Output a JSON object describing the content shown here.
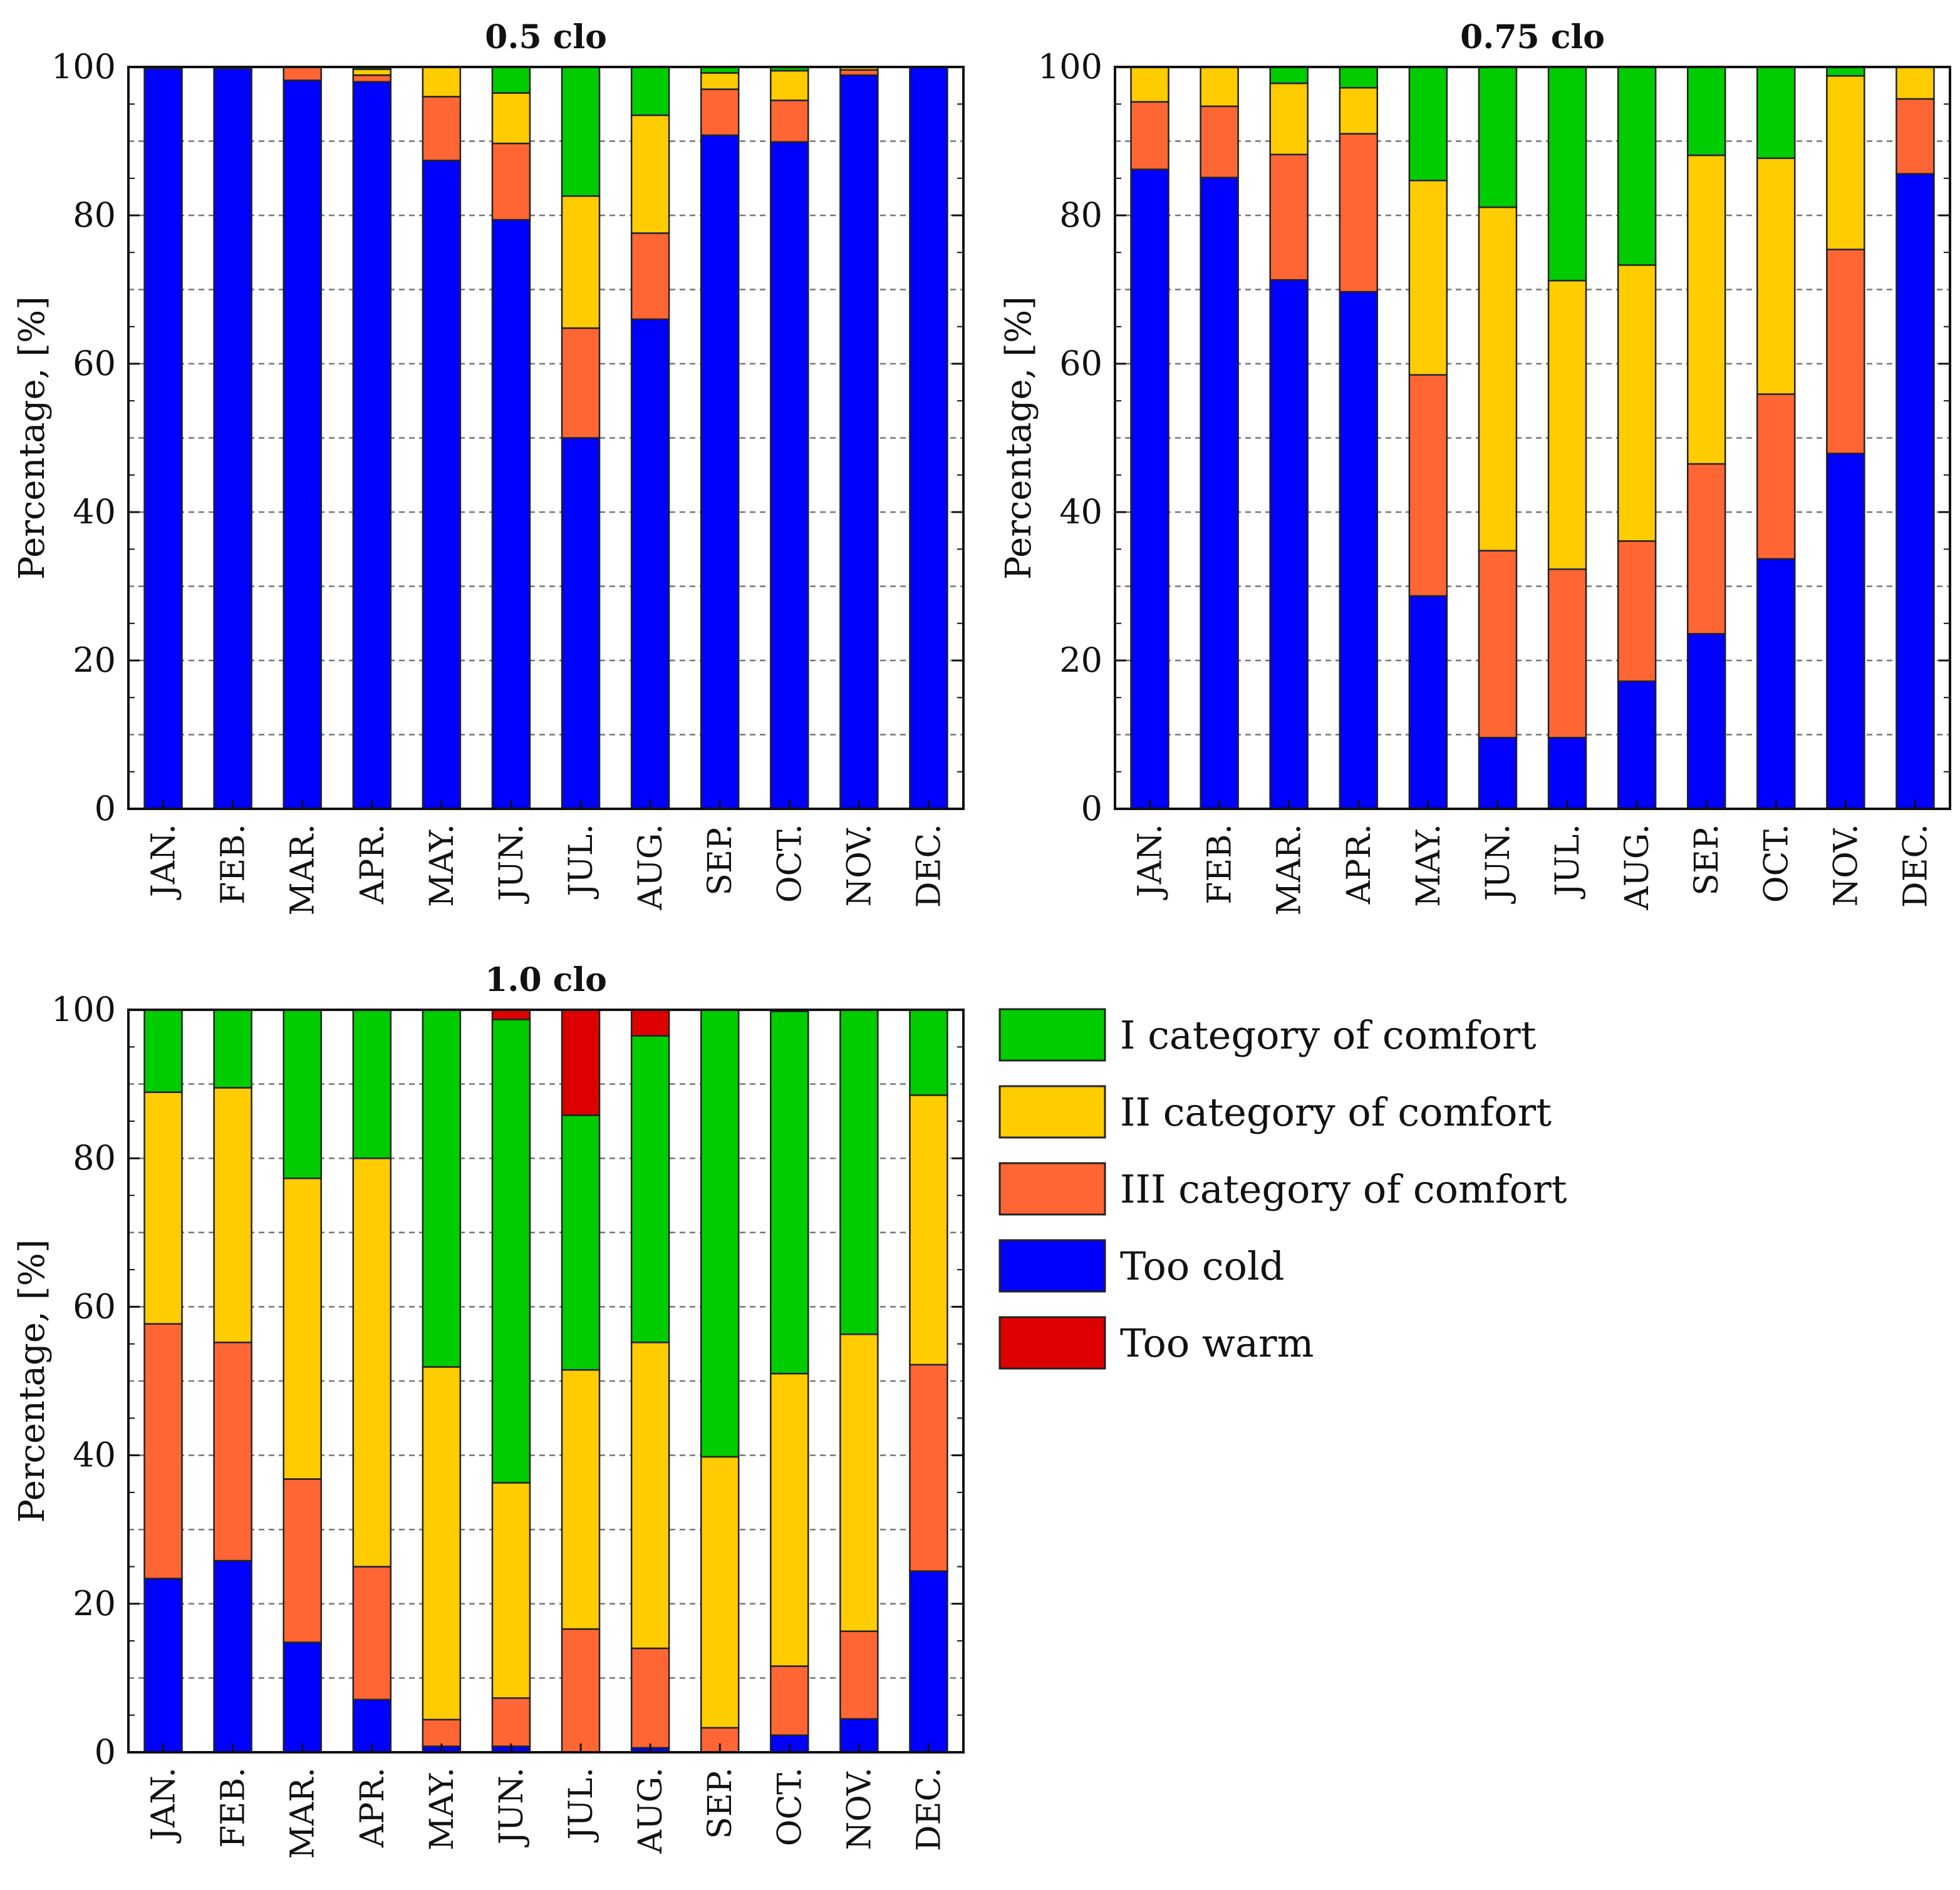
{
  "colors": {
    "too_cold": "#0000ff",
    "iii_category": "#ff6633",
    "ii_category": "#ffcc00",
    "i_category": "#00cc00",
    "too_warm": "#dd0000",
    "grid": "#777777",
    "axis": "#111111"
  },
  "legend": {
    "items": [
      {
        "key": "i_category",
        "label": "I category of comfort"
      },
      {
        "key": "ii_category",
        "label": "II category of comfort"
      },
      {
        "key": "iii_category",
        "label": "III category of comfort"
      },
      {
        "key": "too_cold",
        "label": "Too cold"
      },
      {
        "key": "too_warm",
        "label": "Too warm"
      }
    ]
  },
  "chart_data": [
    {
      "type": "bar",
      "stacked": true,
      "title": "0.5 clo",
      "xlabel": "",
      "ylabel": "Percentage, [%]",
      "ylim": [
        0,
        100
      ],
      "yticks": [
        0,
        20,
        40,
        60,
        80,
        100
      ],
      "grid": "y-dashed",
      "categories": [
        "JAN.",
        "FEB.",
        "MAR.",
        "APR.",
        "MAY.",
        "JUN.",
        "JUL.",
        "AUG.",
        "SEP.",
        "OCT.",
        "NOV.",
        "DEC."
      ],
      "series": [
        {
          "key": "too_cold",
          "name": "Too cold",
          "values": [
            99.8,
            99.8,
            98.2,
            98.0,
            87.4,
            79.4,
            50.0,
            66.0,
            90.8,
            89.9,
            98.9,
            100.0
          ]
        },
        {
          "key": "iii_category",
          "name": "III category of comfort",
          "values": [
            0.2,
            0.2,
            1.8,
            0.9,
            8.6,
            10.3,
            14.8,
            11.6,
            6.2,
            5.6,
            0.7,
            0.0
          ]
        },
        {
          "key": "ii_category",
          "name": "II category of comfort",
          "values": [
            0.0,
            0.0,
            0.0,
            0.8,
            4.0,
            6.8,
            17.8,
            15.9,
            2.2,
            4.0,
            0.4,
            0.0
          ]
        },
        {
          "key": "i_category",
          "name": "I category of comfort",
          "values": [
            0.0,
            0.0,
            0.0,
            0.3,
            0.0,
            3.5,
            17.4,
            6.5,
            0.8,
            0.5,
            0.0,
            0.0
          ]
        },
        {
          "key": "too_warm",
          "name": "Too warm",
          "values": [
            0,
            0,
            0,
            0,
            0,
            0,
            0,
            0,
            0,
            0,
            0,
            0
          ]
        }
      ]
    },
    {
      "type": "bar",
      "stacked": true,
      "title": "0.75 clo",
      "xlabel": "",
      "ylabel": "Percentage, [%]",
      "ylim": [
        0,
        100
      ],
      "yticks": [
        0,
        20,
        40,
        60,
        80,
        100
      ],
      "grid": "y-dashed",
      "categories": [
        "JAN.",
        "FEB.",
        "MAR.",
        "APR.",
        "MAY.",
        "JUN.",
        "JUL.",
        "AUG.",
        "SEP.",
        "OCT.",
        "NOV.",
        "DEC."
      ],
      "series": [
        {
          "key": "too_cold",
          "name": "Too cold",
          "values": [
            86.2,
            85.1,
            71.3,
            69.7,
            28.7,
            9.6,
            9.6,
            17.2,
            23.6,
            33.7,
            47.9,
            85.6
          ]
        },
        {
          "key": "iii_category",
          "name": "III category of comfort",
          "values": [
            9.1,
            9.6,
            16.9,
            21.3,
            29.8,
            25.2,
            22.7,
            18.9,
            22.9,
            22.2,
            27.5,
            10.1
          ]
        },
        {
          "key": "ii_category",
          "name": "II category of comfort",
          "values": [
            4.7,
            5.3,
            9.6,
            6.2,
            26.2,
            46.3,
            38.9,
            37.2,
            41.6,
            31.8,
            23.4,
            4.3
          ]
        },
        {
          "key": "i_category",
          "name": "I category of comfort",
          "values": [
            0.0,
            0.0,
            2.2,
            2.8,
            15.3,
            18.9,
            28.8,
            26.7,
            11.9,
            12.3,
            1.2,
            0.0
          ]
        },
        {
          "key": "too_warm",
          "name": "Too warm",
          "values": [
            0,
            0,
            0,
            0,
            0,
            0,
            0,
            0,
            0,
            0,
            0,
            0
          ]
        }
      ]
    },
    {
      "type": "bar",
      "stacked": true,
      "title": "1.0 clo",
      "xlabel": "",
      "ylabel": "Percentage, [%]",
      "ylim": [
        0,
        100
      ],
      "yticks": [
        0,
        20,
        40,
        60,
        80,
        100
      ],
      "grid": "y-dashed",
      "categories": [
        "JAN.",
        "FEB.",
        "MAR.",
        "APR.",
        "MAY.",
        "JUN.",
        "JUL.",
        "AUG.",
        "SEP.",
        "OCT.",
        "NOV.",
        "DEC."
      ],
      "series": [
        {
          "key": "too_cold",
          "name": "Too cold",
          "values": [
            23.4,
            25.8,
            14.8,
            7.1,
            0.8,
            0.8,
            0.0,
            0.6,
            0.0,
            2.3,
            4.5,
            24.4
          ]
        },
        {
          "key": "iii_category",
          "name": "III category of comfort",
          "values": [
            34.3,
            29.4,
            22.0,
            17.9,
            3.6,
            6.5,
            16.6,
            13.4,
            3.3,
            9.3,
            11.8,
            27.8
          ]
        },
        {
          "key": "ii_category",
          "name": "II category of comfort",
          "values": [
            31.2,
            34.3,
            40.5,
            55.0,
            47.5,
            29.0,
            34.9,
            41.2,
            36.5,
            39.4,
            40.0,
            36.3
          ]
        },
        {
          "key": "i_category",
          "name": "I category of comfort",
          "values": [
            11.1,
            10.5,
            22.7,
            20.0,
            48.1,
            62.4,
            34.3,
            41.3,
            60.2,
            48.8,
            43.7,
            11.5
          ]
        },
        {
          "key": "too_warm",
          "name": "Too warm",
          "values": [
            0.0,
            0.0,
            0.0,
            0.0,
            0.0,
            1.3,
            14.2,
            3.5,
            0.0,
            0.2,
            0.0,
            0.0
          ]
        }
      ]
    }
  ]
}
